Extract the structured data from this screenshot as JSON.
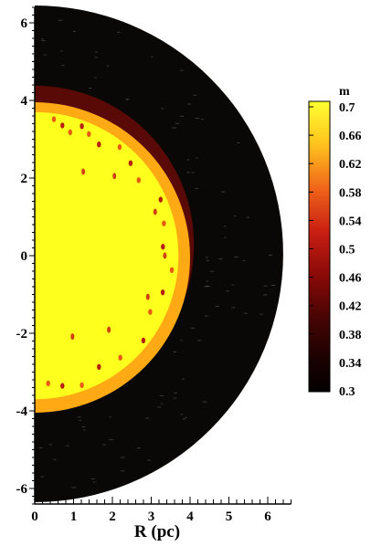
{
  "chart_data": {
    "type": "heatmap",
    "xlabel": "R (pc)",
    "ylabel": "",
    "xlim": [
      0,
      6.6
    ],
    "ylim": [
      -6.4,
      6.4
    ],
    "x_ticks": [
      0,
      1,
      2,
      3,
      4,
      5,
      6
    ],
    "y_ticks": [
      6,
      4,
      2,
      0,
      -2,
      -4,
      -6
    ],
    "colorbar": {
      "title": "m",
      "range": [
        0.3,
        0.7
      ],
      "ticks": [
        "0.7",
        "0.66",
        "0.62",
        "0.58",
        "0.54",
        "0.5",
        "0.46",
        "0.42",
        "0.38",
        "0.34",
        "0.3"
      ]
    },
    "regions": [
      {
        "name": "outer shell",
        "outer_radius_pc": 6.4,
        "value": 0.3
      },
      {
        "name": "dark red cap",
        "outer_radius_pc": 4.1,
        "value": 0.45
      },
      {
        "name": "orange rim",
        "outer_radius_pc": 4.0,
        "value": 0.64
      },
      {
        "name": "inner core",
        "outer_radius_pc": 3.7,
        "value": 0.7
      }
    ]
  },
  "colors": {
    "background": "#0a0707",
    "core": "#ffff1e",
    "rim": "#ffaa14",
    "cap": "#5a0a06"
  }
}
